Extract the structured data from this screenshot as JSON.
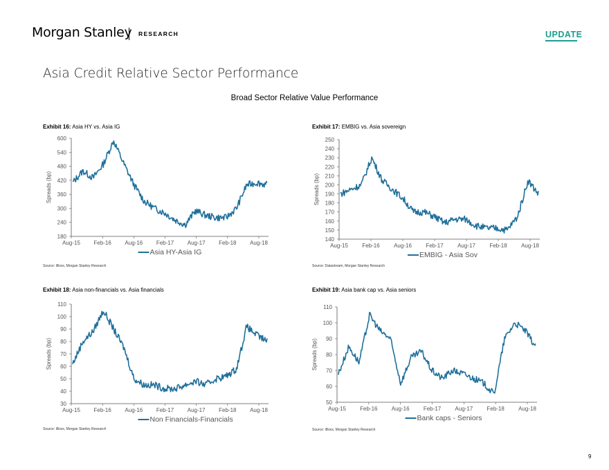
{
  "header": {
    "brand": "Morgan Stanley",
    "section": "RESEARCH",
    "badge": "UPDATE",
    "badge_color": "#1a9e8f"
  },
  "page": {
    "title": "Asia Credit Relative Sector Performance",
    "subtitle": "Broad Sector Relative Value Performance",
    "number": "9"
  },
  "series_color": "#1f6f9a",
  "charts": [
    {
      "exhibit_label": "Exhibit 16:",
      "exhibit_title": "Asia HY vs. Asia IG",
      "source": "Source: iBoxx, Morgan Stanley Research",
      "ylabel": "Spreads (bp)",
      "yticks": [
        "600",
        "540",
        "480",
        "420",
        "360",
        "300",
        "240",
        "180"
      ],
      "xticks": [
        "Aug-15",
        "Feb-16",
        "Aug-16",
        "Feb-17",
        "Aug-17",
        "Feb-18",
        "Aug-18"
      ],
      "legend": "Asia HY-Asia IG"
    },
    {
      "exhibit_label": "Exhibit 17:",
      "exhibit_title": "EMBIG vs. Asia sovereign",
      "source": "Source: Datastream, Morgan Stanley Research",
      "ylabel": "Spreads (bp)",
      "yticks": [
        "250",
        "240",
        "230",
        "220",
        "210",
        "200",
        "190",
        "180",
        "170",
        "160",
        "150",
        "140"
      ],
      "xticks": [
        "Aug-15",
        "Feb-16",
        "Aug-16",
        "Feb-17",
        "Aug-17",
        "Feb-18",
        "Aug-18"
      ],
      "legend": "EMBIG - Asia Sov"
    },
    {
      "exhibit_label": "Exhibit 18:",
      "exhibit_title": "Asia non-financials vs. Asia financials",
      "source": "Source: iBoxx, Morgan Stanley Research",
      "ylabel": "Spreads (bp)",
      "yticks": [
        "110",
        "100",
        "90",
        "80",
        "70",
        "60",
        "50",
        "40",
        "30"
      ],
      "xticks": [
        "Aug-15",
        "Feb-16",
        "Aug-16",
        "Feb-17",
        "Aug-17",
        "Feb-18",
        "Aug-18"
      ],
      "legend": "Non Financials-Financials"
    },
    {
      "exhibit_label": "Exhibit 19:",
      "exhibit_title": "Asia bank cap vs. Asia seniors",
      "source": "Source: iBoxx, Morgan Stanley Research",
      "ylabel": "Spreads (bp)",
      "yticks": [
        "110",
        "100",
        "90",
        "80",
        "70",
        "60",
        "50"
      ],
      "xticks": [
        "Aug-15",
        "Feb-16",
        "Aug-16",
        "Feb-17",
        "Aug-17",
        "Feb-18",
        "Aug-18"
      ],
      "legend": "Bank caps - Seniors"
    }
  ],
  "chart_data": [
    {
      "type": "line",
      "ylabel": "Spreads (bp)",
      "ylim": [
        180,
        600
      ],
      "legend_position": "bottom",
      "series": [
        {
          "name": "Asia HY-Asia IG",
          "x": [
            "Aug-15",
            "Oct-15",
            "Dec-15",
            "Feb-16",
            "Apr-16",
            "Jun-16",
            "Aug-16",
            "Oct-16",
            "Dec-16",
            "Feb-17",
            "Apr-17",
            "Jun-17",
            "Aug-17",
            "Oct-17",
            "Dec-17",
            "Feb-18",
            "Apr-18",
            "Jun-18",
            "Aug-18",
            "Sep-18"
          ],
          "values": [
            410,
            460,
            430,
            490,
            590,
            490,
            400,
            330,
            300,
            280,
            250,
            230,
            290,
            270,
            260,
            260,
            300,
            400,
            410,
            400
          ]
        }
      ]
    },
    {
      "type": "line",
      "ylabel": "Spreads (bp)",
      "ylim": [
        140,
        250
      ],
      "legend_position": "bottom",
      "series": [
        {
          "name": "EMBIG - Asia Sov",
          "x": [
            "Aug-15",
            "Oct-15",
            "Dec-15",
            "Feb-16",
            "Apr-16",
            "Jun-16",
            "Aug-16",
            "Oct-16",
            "Dec-16",
            "Feb-17",
            "Apr-17",
            "Jun-17",
            "Aug-17",
            "Oct-17",
            "Dec-17",
            "Feb-18",
            "Apr-18",
            "Jun-18",
            "Aug-18",
            "Sep-18"
          ],
          "values": [
            190,
            195,
            200,
            230,
            205,
            195,
            185,
            170,
            170,
            165,
            158,
            162,
            162,
            155,
            152,
            152,
            150,
            165,
            205,
            190
          ]
        }
      ]
    },
    {
      "type": "line",
      "ylabel": "Spreads (bp)",
      "ylim": [
        30,
        110
      ],
      "legend_position": "bottom",
      "series": [
        {
          "name": "Non Financials-Financials",
          "x": [
            "Aug-15",
            "Oct-15",
            "Dec-15",
            "Feb-16",
            "Apr-16",
            "Jun-16",
            "Aug-16",
            "Oct-16",
            "Dec-16",
            "Feb-17",
            "Apr-17",
            "Jun-17",
            "Aug-17",
            "Oct-17",
            "Dec-17",
            "Feb-18",
            "Apr-18",
            "Jun-18",
            "Aug-18",
            "Sep-18"
          ],
          "values": [
            62,
            80,
            88,
            105,
            90,
            75,
            50,
            45,
            45,
            42,
            42,
            45,
            48,
            45,
            50,
            52,
            58,
            92,
            85,
            80
          ]
        }
      ]
    },
    {
      "type": "line",
      "ylabel": "Spreads (bp)",
      "ylim": [
        50,
        110
      ],
      "legend_position": "bottom",
      "series": [
        {
          "name": "Bank caps - Seniors",
          "x": [
            "Aug-15",
            "Oct-15",
            "Dec-15",
            "Feb-16",
            "Apr-16",
            "Jun-16",
            "Aug-16",
            "Oct-16",
            "Dec-16",
            "Feb-17",
            "Apr-17",
            "Jun-17",
            "Aug-17",
            "Oct-17",
            "Dec-17",
            "Feb-18",
            "Apr-18",
            "Jun-18",
            "Aug-18",
            "Sep-18"
          ],
          "values": [
            68,
            85,
            75,
            105,
            95,
            90,
            62,
            78,
            82,
            70,
            65,
            70,
            68,
            65,
            62,
            55,
            90,
            100,
            95,
            85
          ]
        }
      ]
    }
  ]
}
